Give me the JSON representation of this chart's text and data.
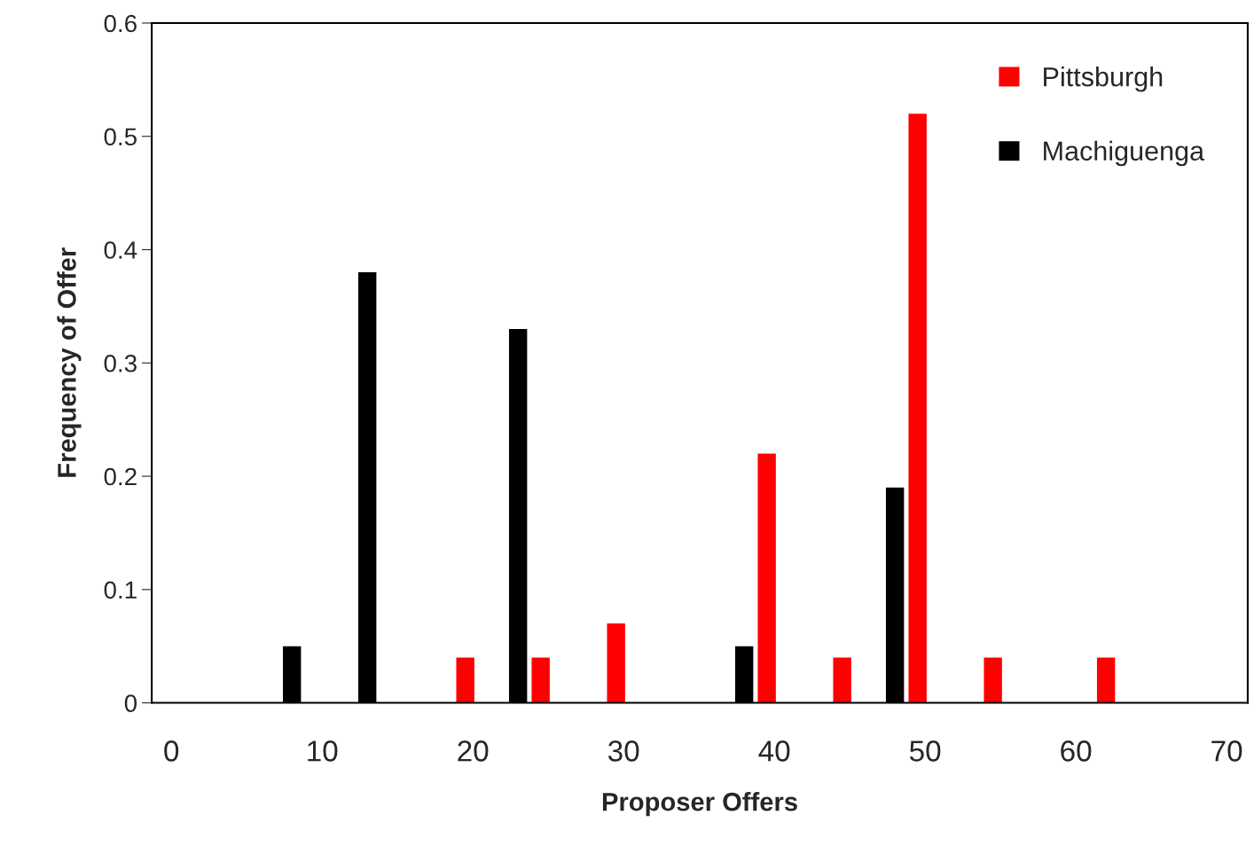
{
  "chart_data": {
    "type": "bar",
    "xlabel": "Proposer Offers",
    "ylabel": "Frequency of Offer",
    "series": [
      {
        "name": "Pittsburgh",
        "color": "#ff0000",
        "x": [
          19.5,
          24.5,
          29.5,
          39.5,
          44.5,
          49.5,
          54.5,
          62
        ],
        "values": [
          0.04,
          0.04,
          0.07,
          0.22,
          0.04,
          0.52,
          0.04,
          0.04
        ]
      },
      {
        "name": "Machiguenga",
        "color": "#000000",
        "x": [
          8,
          13,
          23,
          38,
          48
        ],
        "values": [
          0.05,
          0.38,
          0.33,
          0.05,
          0.19
        ]
      }
    ],
    "xlim": [
      -1.3,
      71.4
    ],
    "xticks": [
      0,
      10,
      20,
      30,
      40,
      50,
      60,
      70
    ],
    "ylim": [
      0,
      0.6
    ],
    "yticks": [
      0,
      0.1,
      0.2,
      0.3,
      0.4,
      0.5,
      0.6
    ],
    "grid": false,
    "legend": "top right"
  }
}
